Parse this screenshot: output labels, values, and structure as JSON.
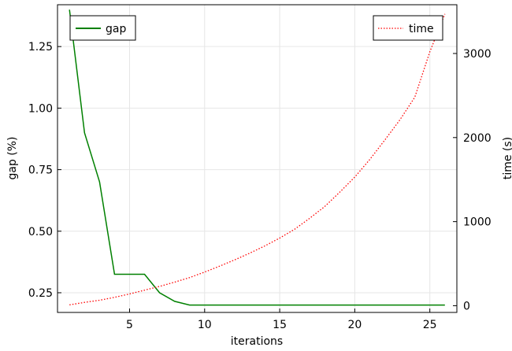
{
  "chart_data": {
    "type": "line",
    "xlabel": "iterations",
    "ylabel_left": "gap (%)",
    "ylabel_right": "time (s)",
    "xlim": [
      0.2,
      26.8
    ],
    "ylim_left": [
      0.17,
      1.42
    ],
    "ylim_right": [
      -80,
      3580
    ],
    "xticks": [
      5,
      10,
      15,
      20,
      25
    ],
    "yticks_left": [
      0.25,
      0.5,
      0.75,
      1.0,
      1.25
    ],
    "yticks_left_labels": [
      "0.25",
      "0.50",
      "0.75",
      "1.00",
      "1.25"
    ],
    "yticks_right": [
      0,
      1000,
      2000,
      3000
    ],
    "yticks_right_labels": [
      "0",
      "1000",
      "2000",
      "3000"
    ],
    "grid": true,
    "series": [
      {
        "name": "gap",
        "axis": "left",
        "color": "#008000",
        "style": "solid",
        "x": [
          1,
          2,
          3,
          4,
          5,
          6,
          7,
          8,
          9,
          10,
          11,
          12,
          13,
          14,
          15,
          16,
          17,
          18,
          19,
          20,
          21,
          22,
          23,
          24,
          25,
          26
        ],
        "values": [
          1.4,
          0.9,
          0.7,
          0.325,
          0.325,
          0.325,
          0.25,
          0.215,
          0.2,
          0.2,
          0.2,
          0.2,
          0.2,
          0.2,
          0.2,
          0.2,
          0.2,
          0.2,
          0.2,
          0.2,
          0.2,
          0.2,
          0.2,
          0.2,
          0.2,
          0.2
        ]
      },
      {
        "name": "time",
        "axis": "right",
        "color": "#ff0000",
        "style": "dotted",
        "x": [
          1,
          2,
          3,
          4,
          5,
          6,
          7,
          8,
          9,
          10,
          11,
          12,
          13,
          14,
          15,
          16,
          17,
          18,
          19,
          20,
          21,
          22,
          23,
          24,
          25,
          26
        ],
        "values": [
          10,
          40,
          65,
          100,
          140,
          185,
          230,
          280,
          335,
          400,
          470,
          545,
          625,
          710,
          805,
          910,
          1040,
          1180,
          1350,
          1530,
          1740,
          1970,
          2210,
          2480,
          3020,
          3470
        ]
      }
    ],
    "legend_left_position": "top-left",
    "legend_right_position": "top-right"
  }
}
